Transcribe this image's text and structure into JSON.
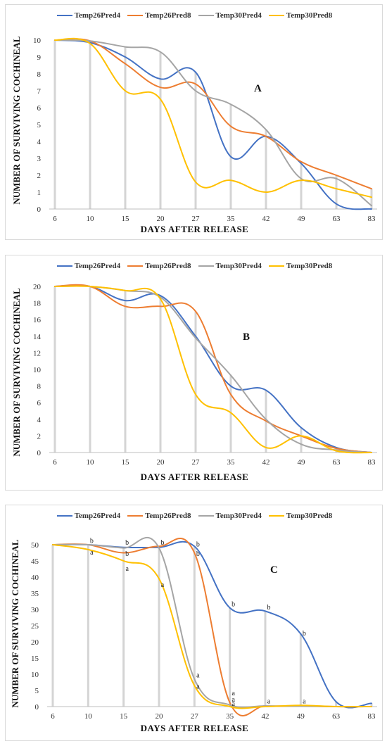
{
  "chart_data": [
    {
      "type": "line",
      "panel_label": "A",
      "title": "",
      "xlabel": "DAYS AFTER RELEASE",
      "ylabel": "NUMBER OF SURVIVING COCHINEAL",
      "categories": [
        "6",
        "10",
        "15",
        "20",
        "27",
        "35",
        "42",
        "49",
        "63",
        "83"
      ],
      "ylim": [
        0,
        10
      ],
      "yticks": [
        0,
        1,
        2,
        3,
        4,
        5,
        6,
        7,
        8,
        9,
        10
      ],
      "legend_position": "top",
      "series": [
        {
          "name": "Temp26Pred4",
          "color": "#4472C4",
          "values": [
            10,
            9.85,
            9,
            7.7,
            8.1,
            3.1,
            4.3,
            2.7,
            0.3,
            0
          ]
        },
        {
          "name": "Temp26Pred8",
          "color": "#ED7D31",
          "values": [
            10,
            9.95,
            8.6,
            7.2,
            7.4,
            4.9,
            4.3,
            2.8,
            2,
            1.2
          ]
        },
        {
          "name": "Temp30Pred4",
          "color": "#A5A5A5",
          "values": [
            10,
            9.95,
            9.6,
            9.3,
            7,
            6.2,
            4.7,
            1.8,
            1.8,
            0.2
          ]
        },
        {
          "name": "Temp30Pred8",
          "color": "#FFC000",
          "values": [
            10,
            9.8,
            7,
            6.5,
            1.6,
            1.7,
            1,
            1.7,
            1.2,
            0.7
          ]
        }
      ],
      "annotations": []
    },
    {
      "type": "line",
      "panel_label": "B",
      "title": "",
      "xlabel": "DAYS AFTER RELEASE",
      "ylabel": "NUMBER OF SURVIVING COCHINEAL",
      "categories": [
        "6",
        "10",
        "15",
        "20",
        "27",
        "35",
        "42",
        "49",
        "63",
        "83"
      ],
      "ylim": [
        0,
        20
      ],
      "yticks": [
        0,
        2,
        4,
        6,
        8,
        10,
        12,
        14,
        16,
        18,
        20
      ],
      "legend_position": "top",
      "series": [
        {
          "name": "Temp26Pred4",
          "color": "#4472C4",
          "values": [
            20,
            20,
            18.3,
            18.9,
            14,
            8,
            7.5,
            3,
            0.6,
            0
          ]
        },
        {
          "name": "Temp26Pred8",
          "color": "#ED7D31",
          "values": [
            20,
            20,
            17.6,
            17.6,
            17,
            7,
            3.8,
            2,
            0.5,
            0
          ]
        },
        {
          "name": "Temp30Pred4",
          "color": "#A5A5A5",
          "values": [
            20,
            20,
            19.5,
            18.7,
            13.8,
            9.3,
            4,
            1,
            0.3,
            0
          ]
        },
        {
          "name": "Temp30Pred8",
          "color": "#FFC000",
          "values": [
            20,
            20,
            19.5,
            18.5,
            7,
            4.8,
            0.6,
            2,
            0.2,
            0
          ]
        }
      ],
      "annotations": []
    },
    {
      "type": "line",
      "panel_label": "C",
      "title": "",
      "xlabel": "DAYS AFTER RELEASE",
      "ylabel": "NUMBER OF SURVIVING COCHINEAL",
      "categories": [
        "6",
        "10",
        "15",
        "20",
        "27",
        "35",
        "42",
        "49",
        "63",
        "83"
      ],
      "ylim": [
        0,
        50
      ],
      "yticks": [
        0,
        5,
        10,
        15,
        20,
        25,
        30,
        35,
        40,
        45,
        50
      ],
      "legend_position": "top",
      "series": [
        {
          "name": "Temp26Pred4",
          "color": "#4472C4",
          "values": [
            50,
            50,
            49.2,
            49.2,
            49.5,
            30.5,
            29.5,
            22.5,
            1.5,
            1
          ]
        },
        {
          "name": "Temp26Pred8",
          "color": "#ED7D31",
          "values": [
            50,
            50,
            47.5,
            49.5,
            47.5,
            1.2,
            0.2,
            0.2,
            0,
            0
          ]
        },
        {
          "name": "Temp30Pred4",
          "color": "#A5A5A5",
          "values": [
            50,
            50,
            49,
            49,
            8.5,
            0.5,
            0.2,
            0.1,
            0,
            0
          ]
        },
        {
          "name": "Temp30Pred8",
          "color": "#FFC000",
          "values": [
            50,
            48.5,
            45,
            39.5,
            6.5,
            0,
            0,
            0.4,
            0,
            0
          ]
        }
      ],
      "annotations": [
        {
          "text": "b",
          "category": "10",
          "y": 50.5
        },
        {
          "text": "a",
          "category": "10",
          "y": 47
        },
        {
          "text": "b",
          "category": "15",
          "y": 50
        },
        {
          "text": "b",
          "category": "15",
          "y": 46.5
        },
        {
          "text": "a",
          "category": "15",
          "y": 42
        },
        {
          "text": "b",
          "category": "20",
          "y": 50
        },
        {
          "text": "a",
          "category": "20",
          "y": 37
        },
        {
          "text": "b",
          "category": "27",
          "y": 49.5
        },
        {
          "text": "b",
          "category": "27",
          "y": 46.5
        },
        {
          "text": "a",
          "category": "27",
          "y": 9
        },
        {
          "text": "a",
          "category": "27",
          "y": 5.5
        },
        {
          "text": "b",
          "category": "35",
          "y": 31
        },
        {
          "text": "a",
          "category": "35",
          "y": 3.5
        },
        {
          "text": "a",
          "category": "35",
          "y": 1.5
        },
        {
          "text": "a",
          "category": "35",
          "y": 0.2
        },
        {
          "text": "b",
          "category": "42",
          "y": 30
        },
        {
          "text": "a",
          "category": "42",
          "y": 1
        },
        {
          "text": "b",
          "category": "49",
          "y": 22
        },
        {
          "text": "a",
          "category": "49",
          "y": 1
        }
      ]
    }
  ]
}
